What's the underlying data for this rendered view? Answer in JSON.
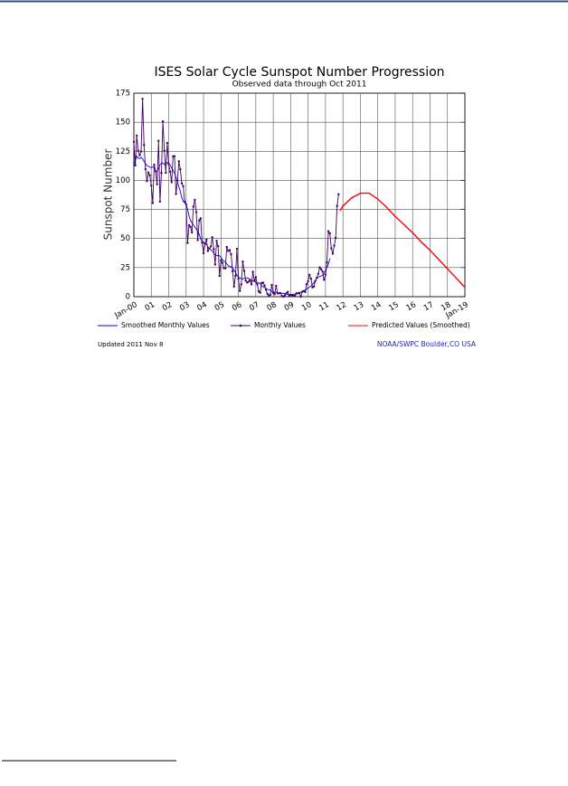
{
  "chart_data": {
    "type": "line",
    "title": "ISES Solar Cycle Sunspot Number Progression",
    "subtitle": "Observed data through Oct 2011",
    "ylabel": "Sunspot Number",
    "footer_left": "Updated 2011 Nov  8",
    "footer_right": "NOAA/SWPC Boulder,CO USA",
    "xlim": [
      0,
      228
    ],
    "xticks": [
      {
        "value": 0,
        "label": "Jan-00"
      },
      {
        "value": 12,
        "label": "01"
      },
      {
        "value": 24,
        "label": "02"
      },
      {
        "value": 36,
        "label": "03"
      },
      {
        "value": 48,
        "label": "04"
      },
      {
        "value": 60,
        "label": "05"
      },
      {
        "value": 72,
        "label": "06"
      },
      {
        "value": 84,
        "label": "07"
      },
      {
        "value": 96,
        "label": "08"
      },
      {
        "value": 108,
        "label": "09"
      },
      {
        "value": 120,
        "label": "10"
      },
      {
        "value": 132,
        "label": "11"
      },
      {
        "value": 144,
        "label": "12"
      },
      {
        "value": 156,
        "label": "13"
      },
      {
        "value": 168,
        "label": "14"
      },
      {
        "value": 180,
        "label": "15"
      },
      {
        "value": 192,
        "label": "16"
      },
      {
        "value": 204,
        "label": "17"
      },
      {
        "value": 216,
        "label": "18"
      },
      {
        "value": 228,
        "label": "Jan-19"
      }
    ],
    "ylim": [
      0,
      175
    ],
    "yticks": [
      0,
      25,
      50,
      75,
      100,
      125,
      150,
      175
    ],
    "grid": true,
    "x": [
      0,
      1,
      2,
      3,
      4,
      5,
      6,
      7,
      8,
      9,
      10,
      11,
      12,
      13,
      14,
      15,
      16,
      17,
      18,
      19,
      20,
      21,
      22,
      23,
      24,
      25,
      26,
      27,
      28,
      29,
      30,
      31,
      32,
      33,
      34,
      35,
      36,
      37,
      38,
      39,
      40,
      41,
      42,
      43,
      44,
      45,
      46,
      47,
      48,
      49,
      50,
      51,
      52,
      53,
      54,
      55,
      56,
      57,
      58,
      59,
      60,
      61,
      62,
      63,
      64,
      65,
      66,
      67,
      68,
      69,
      70,
      71,
      72,
      73,
      74,
      75,
      76,
      77,
      78,
      79,
      80,
      81,
      82,
      83,
      84,
      85,
      86,
      87,
      88,
      89,
      90,
      91,
      92,
      93,
      94,
      95,
      96,
      97,
      98,
      99,
      100,
      101,
      102,
      103,
      104,
      105,
      106,
      107,
      108,
      109,
      110,
      111,
      112,
      113,
      114,
      115,
      116,
      117,
      118,
      119,
      120,
      121,
      122,
      123,
      124,
      125,
      126,
      127,
      128,
      129,
      130,
      131,
      132,
      133,
      134,
      135,
      136,
      137,
      138,
      139,
      140,
      141
    ],
    "series": [
      {
        "name": "Smoothed Monthly Values",
        "color": "#0000ff",
        "style": "line",
        "values": [
          112.9,
          117.2,
          120.8,
          119.0,
          118.7,
          119.8,
          118.6,
          116.3,
          114.5,
          112.7,
          112.1,
          111.5,
          110.9,
          111.6,
          111.1,
          108.1,
          107.8,
          110.5,
          113.4,
          114.6,
          115.1,
          113.6,
          114.5,
          115.5,
          114.6,
          113.3,
          110.5,
          108.8,
          106.2,
          102.7,
          98.7,
          94.6,
          90.5,
          85.2,
          82.0,
          80.8,
          79.7,
          75.1,
          69.4,
          65.4,
          63.7,
          61.7,
          60.0,
          58.1,
          56.1,
          53.7,
          49.7,
          47.5,
          46.8,
          45.8,
          44.7,
          42.7,
          41.6,
          40.2,
          39.2,
          37.5,
          35.9,
          35.4,
          35.3,
          35.2,
          33.9,
          31.7,
          30.7,
          29.8,
          28.3,
          26.6,
          25.9,
          25.8,
          24.9,
          22.5,
          20.9,
          18.5,
          16.8,
          16.4,
          15.3,
          15.1,
          16.0,
          16.0,
          16.2,
          15.8,
          14.4,
          13.2,
          13.9,
          13.5,
          12.2,
          11.6,
          12.0,
          11.3,
          9.3,
          8.5,
          7.9,
          7.1,
          6.2,
          6.1,
          5.8,
          4.5,
          4.1,
          3.9,
          3.7,
          3.1,
          2.9,
          2.9,
          2.9,
          3.0,
          2.6,
          2.2,
          1.8,
          1.7,
          1.8,
          1.9,
          2.2,
          2.3,
          2.4,
          2.9,
          3.3,
          3.8,
          4.5,
          5.0,
          5.6,
          6.5,
          7.5,
          8.3,
          9.3,
          10.5,
          12.1,
          14.0,
          15.6,
          16.8,
          17.4,
          17.8,
          18.4,
          20.2,
          22.8,
          25.1,
          28.0,
          33.0,
          null,
          null,
          null,
          null,
          null,
          null
        ]
      },
      {
        "name": "Monthly Values",
        "color": "#400060",
        "style": "line-markers",
        "values": [
          133.1,
          112.9,
          138.5,
          125.5,
          121.6,
          124.9,
          170.1,
          130.5,
          109.7,
          99.4,
          106.8,
          104.4,
          95.6,
          80.6,
          113.5,
          107.7,
          96.6,
          134.0,
          81.8,
          106.4,
          150.7,
          125.5,
          106.5,
          132.2,
          114.1,
          107.4,
          98.4,
          120.7,
          120.8,
          88.3,
          99.6,
          116.4,
          109.6,
          97.5,
          95.0,
          81.6,
          79.5,
          46.2,
          61.5,
          60.0,
          55.2,
          77.4,
          83.3,
          72.7,
          48.7,
          65.5,
          67.3,
          46.5,
          37.3,
          45.8,
          49.1,
          39.3,
          41.5,
          43.2,
          51.1,
          40.9,
          27.7,
          48.0,
          43.5,
          17.9,
          31.3,
          29.2,
          24.5,
          24.4,
          42.7,
          39.3,
          40.1,
          36.4,
          21.9,
          8.7,
          18.0,
          41.1,
          15.3,
          4.9,
          10.6,
          30.2,
          22.3,
          13.9,
          12.2,
          12.9,
          14.4,
          10.5,
          21.4,
          13.6,
          16.8,
          10.7,
          4.5,
          3.4,
          11.7,
          12.1,
          9.7,
          6.0,
          2.4,
          0.9,
          1.7,
          10.1,
          3.3,
          2.1,
          9.3,
          2.9,
          2.9,
          3.1,
          0.5,
          0.0,
          1.1,
          2.9,
          4.1,
          0.8,
          1.5,
          1.4,
          0.7,
          0.8,
          2.9,
          2.9,
          3.2,
          0.0,
          4.3,
          4.8,
          4.1,
          10.8,
          13.2,
          18.8,
          15.4,
          8.0,
          8.7,
          13.6,
          16.1,
          19.6,
          25.2,
          23.5,
          21.6,
          14.5,
          19.0,
          29.4,
          56.2,
          54.4,
          41.6,
          37.0,
          43.9,
          50.6,
          78.0,
          88.0
        ]
      },
      {
        "name": "Predicted Values (Smoothed)",
        "color": "#ff0000",
        "style": "line",
        "x": [
          142,
          144,
          150,
          156,
          162,
          168,
          174,
          180,
          186,
          192,
          198,
          204,
          210,
          216,
          222,
          228
        ],
        "values": [
          74,
          78,
          85,
          89,
          89,
          84,
          77,
          69,
          62,
          55,
          47,
          40,
          32,
          24,
          16,
          8
        ]
      }
    ]
  }
}
